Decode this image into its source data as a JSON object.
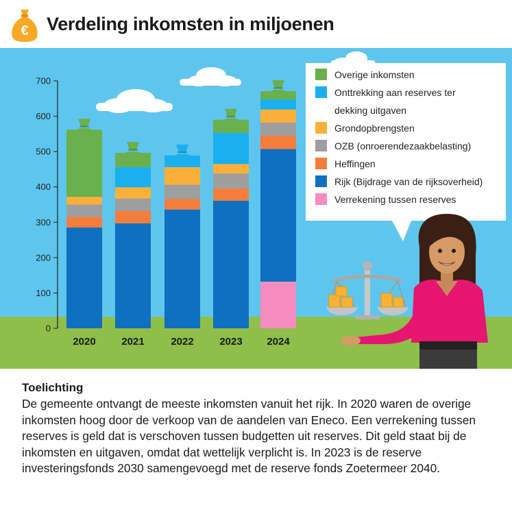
{
  "header": {
    "title": "Verdeling inkomsten in miljoenen",
    "icon": "money-bag-euro-icon",
    "icon_symbol": "€"
  },
  "chart_data": {
    "type": "bar",
    "stacked": true,
    "title": "Verdeling inkomsten in miljoenen",
    "xlabel": "",
    "ylabel": "",
    "ylim": [
      0,
      700
    ],
    "yticks": [
      0,
      100,
      200,
      300,
      400,
      500,
      600,
      700
    ],
    "grid": false,
    "legend_position": "top-right",
    "categories": [
      "2020",
      "2021",
      "2022",
      "2023",
      "2024"
    ],
    "series": [
      {
        "name": "Verrekening tussen reserves",
        "color": "#f48cbf",
        "values": [
          0,
          0,
          0,
          0,
          132
        ]
      },
      {
        "name": "Rijk (Bijdrage van de rijksoverheid)",
        "color": "#0f6fc0",
        "values": [
          285,
          297,
          336,
          361,
          375
        ]
      },
      {
        "name": "Heffingen",
        "color": "#f47d3c",
        "values": [
          30,
          35,
          30,
          35,
          38
        ]
      },
      {
        "name": "OZB (onroerendezaakbelasting)",
        "color": "#9e9e9e",
        "values": [
          35,
          35,
          40,
          42,
          37
        ]
      },
      {
        "name": "Grondopbrengsten",
        "color": "#fbb03b",
        "values": [
          22,
          32,
          50,
          27,
          37
        ]
      },
      {
        "name": "Onttrekking aan reserves ter dekking uitgaven",
        "color": "#1ab0ef",
        "values": [
          0,
          57,
          33,
          88,
          32
        ]
      },
      {
        "name": "Overige inkomsten",
        "color": "#6ab04c",
        "values": [
          190,
          40,
          0,
          37,
          20
        ]
      }
    ],
    "legend_order": [
      "Overige inkomsten",
      "Onttrekking aan reserves ter dekking uitgaven",
      "Grondopbrengsten",
      "OZB (onroerendezaakbelasting)",
      "Heffingen",
      "Rijk (Bijdrage van de rijksoverheid)",
      "Verrekening tussen reserves"
    ]
  },
  "legend_lines": {
    "onttrekking": [
      "Onttrekking aan reserves ter",
      "dekking uitgaven"
    ]
  },
  "illustration": {
    "icons": [
      "cloud-icon",
      "woman-illustration",
      "balance-scale-icon",
      "coin-stack-icon",
      "money-bag-icon"
    ]
  },
  "explanation": {
    "heading": "Toelichting",
    "body": "De gemeente ontvangt de meeste inkomsten vanuit het rijk. In 2020 waren de overige inkomsten hoog door de verkoop van de aandelen van Eneco. Een verrekening tussen reserves is geld dat is verschoven tussen budgetten uit reserves. Dit geld staat bij de inkomsten en uitgaven, omdat dat wettelijk verplicht is. In 2023 is de reserve investeringsfonds 2030 samengevoegd met de reserve fonds Zoetermeer 2040."
  }
}
